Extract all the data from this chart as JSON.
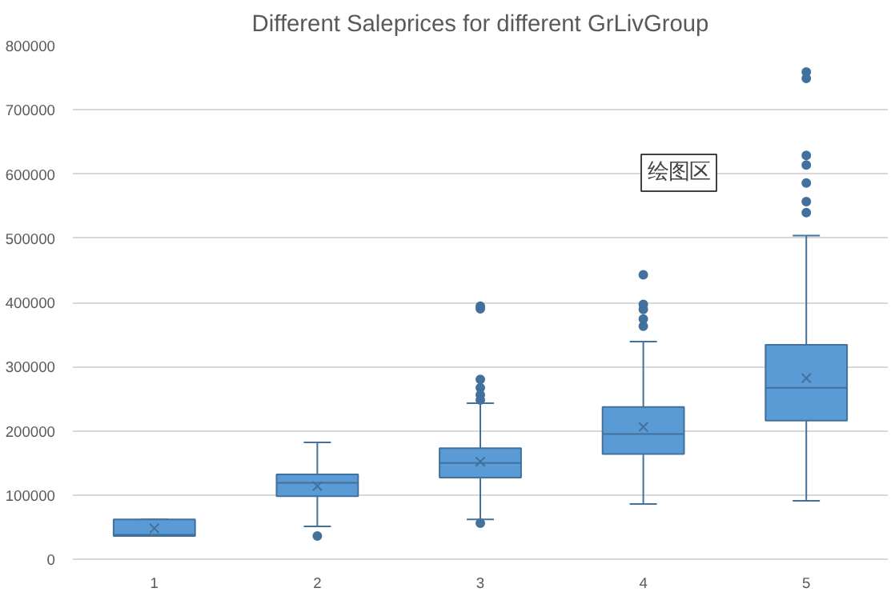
{
  "chart_data": {
    "type": "box",
    "title": "Different Saleprices for different GrLivGroup",
    "categories": [
      "1",
      "2",
      "3",
      "4",
      "5"
    ],
    "boxes": [
      {
        "low": 36000,
        "q1": 36000,
        "median": 38000,
        "q3": 62000,
        "high": 62000,
        "mean": 48000
      },
      {
        "low": 51000,
        "q1": 98000,
        "median": 119000,
        "q3": 132000,
        "high": 182000,
        "mean": 114000,
        "outliers": [
          36000
        ]
      },
      {
        "low": 62000,
        "q1": 127000,
        "median": 150000,
        "q3": 173000,
        "high": 243000,
        "mean": 152000,
        "outliers": [
          56000,
          248000,
          256000,
          267000,
          280000,
          390000,
          394000
        ]
      },
      {
        "low": 86000,
        "q1": 164000,
        "median": 195000,
        "q3": 237000,
        "high": 339000,
        "mean": 206000,
        "outliers": [
          363000,
          374000,
          389000,
          397000,
          443000
        ]
      },
      {
        "low": 91000,
        "q1": 216000,
        "median": 267000,
        "q3": 334000,
        "high": 504000,
        "mean": 282000,
        "outliers": [
          540000,
          557000,
          586000,
          614000,
          629000,
          749000,
          759000
        ]
      }
    ],
    "color": "#5b9bd5",
    "ylim": [
      0,
      800000
    ],
    "yticks": [
      0,
      100000,
      200000,
      300000,
      400000,
      500000,
      600000,
      700000,
      800000
    ],
    "grid": "y",
    "annotations": [
      "绘图区"
    ]
  }
}
